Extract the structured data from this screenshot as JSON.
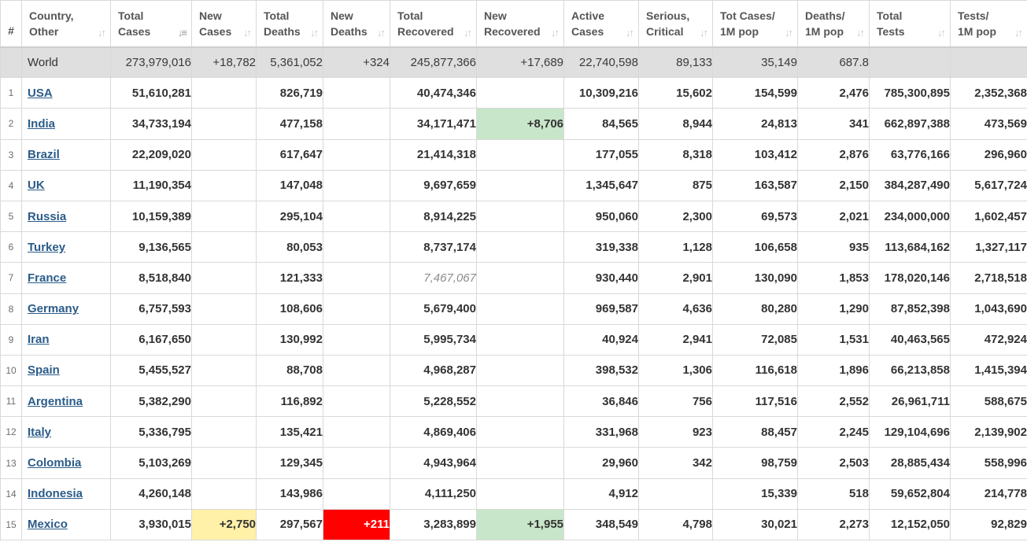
{
  "colors": {
    "new_recovered_highlight": "#c8e6c9",
    "new_cases_highlight": "#fff1a8",
    "new_deaths_highlight": "#ff0000",
    "link": "#2b5c8a",
    "world_row_bg": "#dfdfdf",
    "header_text": "#555555"
  },
  "headers": [
    {
      "key": "idx",
      "label": "#",
      "sort_icon": ""
    },
    {
      "key": "country",
      "label": "Country,\nOther",
      "sort_icon": "sort-arrows-icon"
    },
    {
      "key": "total_cases",
      "label": "Total\nCases",
      "sort_icon": "sort-desc-icon"
    },
    {
      "key": "new_cases",
      "label": "New\nCases",
      "sort_icon": "sort-arrows-icon"
    },
    {
      "key": "total_deaths",
      "label": "Total\nDeaths",
      "sort_icon": "sort-arrows-icon"
    },
    {
      "key": "new_deaths",
      "label": "New\nDeaths",
      "sort_icon": "sort-arrows-icon"
    },
    {
      "key": "total_recovered",
      "label": "Total\nRecovered",
      "sort_icon": "sort-arrows-icon"
    },
    {
      "key": "new_recovered",
      "label": "New\nRecovered",
      "sort_icon": "sort-arrows-icon"
    },
    {
      "key": "active_cases",
      "label": "Active\nCases",
      "sort_icon": "sort-arrows-icon"
    },
    {
      "key": "serious",
      "label": "Serious,\nCritical",
      "sort_icon": "sort-arrows-icon"
    },
    {
      "key": "cases_per_m",
      "label": "Tot Cases/\n1M pop",
      "sort_icon": "sort-arrows-icon"
    },
    {
      "key": "deaths_per_m",
      "label": "Deaths/\n1M pop",
      "sort_icon": "sort-arrows-icon"
    },
    {
      "key": "total_tests",
      "label": "Total\nTests",
      "sort_icon": "sort-arrows-icon"
    },
    {
      "key": "tests_per_m",
      "label": "Tests/\n1M pop",
      "sort_icon": "sort-arrows-icon"
    }
  ],
  "world": {
    "country": "World",
    "total_cases": "273,979,016",
    "new_cases": "+18,782",
    "total_deaths": "5,361,052",
    "new_deaths": "+324",
    "total_recovered": "245,877,366",
    "new_recovered": "+17,689",
    "active_cases": "22,740,598",
    "serious": "89,133",
    "cases_per_m": "35,149",
    "deaths_per_m": "687.8",
    "total_tests": "",
    "tests_per_m": ""
  },
  "rows": [
    {
      "idx": "1",
      "country": "USA",
      "total_cases": "51,610,281",
      "new_cases": "",
      "total_deaths": "826,719",
      "new_deaths": "",
      "total_recovered": "40,474,346",
      "new_recovered": "",
      "active_cases": "10,309,216",
      "serious": "15,602",
      "cases_per_m": "154,599",
      "deaths_per_m": "2,476",
      "total_tests": "785,300,895",
      "tests_per_m": "2,352,368"
    },
    {
      "idx": "2",
      "country": "India",
      "total_cases": "34,733,194",
      "new_cases": "",
      "total_deaths": "477,158",
      "new_deaths": "",
      "total_recovered": "34,171,471",
      "new_recovered": "+8,706",
      "active_cases": "84,565",
      "serious": "8,944",
      "cases_per_m": "24,813",
      "deaths_per_m": "341",
      "total_tests": "662,897,388",
      "tests_per_m": "473,569"
    },
    {
      "idx": "3",
      "country": "Brazil",
      "total_cases": "22,209,020",
      "new_cases": "",
      "total_deaths": "617,647",
      "new_deaths": "",
      "total_recovered": "21,414,318",
      "new_recovered": "",
      "active_cases": "177,055",
      "serious": "8,318",
      "cases_per_m": "103,412",
      "deaths_per_m": "2,876",
      "total_tests": "63,776,166",
      "tests_per_m": "296,960"
    },
    {
      "idx": "4",
      "country": "UK",
      "total_cases": "11,190,354",
      "new_cases": "",
      "total_deaths": "147,048",
      "new_deaths": "",
      "total_recovered": "9,697,659",
      "new_recovered": "",
      "active_cases": "1,345,647",
      "serious": "875",
      "cases_per_m": "163,587",
      "deaths_per_m": "2,150",
      "total_tests": "384,287,490",
      "tests_per_m": "5,617,724"
    },
    {
      "idx": "5",
      "country": "Russia",
      "total_cases": "10,159,389",
      "new_cases": "",
      "total_deaths": "295,104",
      "new_deaths": "",
      "total_recovered": "8,914,225",
      "new_recovered": "",
      "active_cases": "950,060",
      "serious": "2,300",
      "cases_per_m": "69,573",
      "deaths_per_m": "2,021",
      "total_tests": "234,000,000",
      "tests_per_m": "1,602,457"
    },
    {
      "idx": "6",
      "country": "Turkey",
      "total_cases": "9,136,565",
      "new_cases": "",
      "total_deaths": "80,053",
      "new_deaths": "",
      "total_recovered": "8,737,174",
      "new_recovered": "",
      "active_cases": "319,338",
      "serious": "1,128",
      "cases_per_m": "106,658",
      "deaths_per_m": "935",
      "total_tests": "113,684,162",
      "tests_per_m": "1,327,117"
    },
    {
      "idx": "7",
      "country": "France",
      "total_cases": "8,518,840",
      "new_cases": "",
      "total_deaths": "121,333",
      "new_deaths": "",
      "total_recovered": "7,467,067",
      "new_recovered": "",
      "active_cases": "930,440",
      "serious": "2,901",
      "cases_per_m": "130,090",
      "deaths_per_m": "1,853",
      "total_tests": "178,020,146",
      "tests_per_m": "2,718,518"
    },
    {
      "idx": "8",
      "country": "Germany",
      "total_cases": "6,757,593",
      "new_cases": "",
      "total_deaths": "108,606",
      "new_deaths": "",
      "total_recovered": "5,679,400",
      "new_recovered": "",
      "active_cases": "969,587",
      "serious": "4,636",
      "cases_per_m": "80,280",
      "deaths_per_m": "1,290",
      "total_tests": "87,852,398",
      "tests_per_m": "1,043,690"
    },
    {
      "idx": "9",
      "country": "Iran",
      "total_cases": "6,167,650",
      "new_cases": "",
      "total_deaths": "130,992",
      "new_deaths": "",
      "total_recovered": "5,995,734",
      "new_recovered": "",
      "active_cases": "40,924",
      "serious": "2,941",
      "cases_per_m": "72,085",
      "deaths_per_m": "1,531",
      "total_tests": "40,463,565",
      "tests_per_m": "472,924"
    },
    {
      "idx": "10",
      "country": "Spain",
      "total_cases": "5,455,527",
      "new_cases": "",
      "total_deaths": "88,708",
      "new_deaths": "",
      "total_recovered": "4,968,287",
      "new_recovered": "",
      "active_cases": "398,532",
      "serious": "1,306",
      "cases_per_m": "116,618",
      "deaths_per_m": "1,896",
      "total_tests": "66,213,858",
      "tests_per_m": "1,415,394"
    },
    {
      "idx": "11",
      "country": "Argentina",
      "total_cases": "5,382,290",
      "new_cases": "",
      "total_deaths": "116,892",
      "new_deaths": "",
      "total_recovered": "5,228,552",
      "new_recovered": "",
      "active_cases": "36,846",
      "serious": "756",
      "cases_per_m": "117,516",
      "deaths_per_m": "2,552",
      "total_tests": "26,961,711",
      "tests_per_m": "588,675"
    },
    {
      "idx": "12",
      "country": "Italy",
      "total_cases": "5,336,795",
      "new_cases": "",
      "total_deaths": "135,421",
      "new_deaths": "",
      "total_recovered": "4,869,406",
      "new_recovered": "",
      "active_cases": "331,968",
      "serious": "923",
      "cases_per_m": "88,457",
      "deaths_per_m": "2,245",
      "total_tests": "129,104,696",
      "tests_per_m": "2,139,902"
    },
    {
      "idx": "13",
      "country": "Colombia",
      "total_cases": "5,103,269",
      "new_cases": "",
      "total_deaths": "129,345",
      "new_deaths": "",
      "total_recovered": "4,943,964",
      "new_recovered": "",
      "active_cases": "29,960",
      "serious": "342",
      "cases_per_m": "98,759",
      "deaths_per_m": "2,503",
      "total_tests": "28,885,434",
      "tests_per_m": "558,996"
    },
    {
      "idx": "14",
      "country": "Indonesia",
      "total_cases": "4,260,148",
      "new_cases": "",
      "total_deaths": "143,986",
      "new_deaths": "",
      "total_recovered": "4,111,250",
      "new_recovered": "",
      "active_cases": "4,912",
      "serious": "",
      "cases_per_m": "15,339",
      "deaths_per_m": "518",
      "total_tests": "59,652,804",
      "tests_per_m": "214,778"
    },
    {
      "idx": "15",
      "country": "Mexico",
      "total_cases": "3,930,015",
      "new_cases": "+2,750",
      "total_deaths": "297,567",
      "new_deaths": "+211",
      "total_recovered": "3,283,899",
      "new_recovered": "+1,955",
      "active_cases": "348,549",
      "serious": "4,798",
      "cases_per_m": "30,021",
      "deaths_per_m": "2,273",
      "total_tests": "12,152,050",
      "tests_per_m": "92,829"
    }
  ],
  "highlights": [
    {
      "row": 1,
      "col": "new_recovered",
      "style": "green"
    },
    {
      "row": 14,
      "col": "new_cases",
      "style": "yellow"
    },
    {
      "row": 14,
      "col": "new_deaths",
      "style": "red"
    },
    {
      "row": 14,
      "col": "new_recovered",
      "style": "green"
    }
  ],
  "estimated_cells": [
    {
      "row": 6,
      "col": "total_recovered"
    }
  ]
}
